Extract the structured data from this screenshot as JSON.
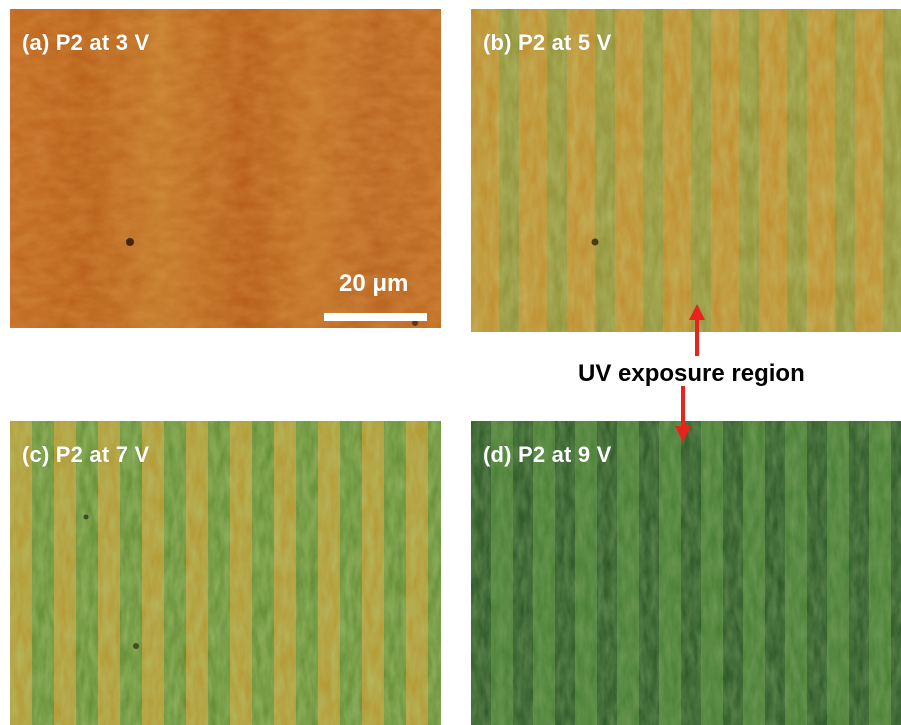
{
  "panels": {
    "a": {
      "label": "(a) P2 at 3 V"
    },
    "b": {
      "label": "(b) P2 at 5 V"
    },
    "c": {
      "label": "(c) P2 at 7 V"
    },
    "d": {
      "label": "(d) P2 at 9 V"
    }
  },
  "scale_bar": {
    "label": "20 μm"
  },
  "annotation": {
    "label": "UV exposure region"
  },
  "colors": {
    "orange": "#c0651c",
    "amber": "#c38a2a",
    "olive": "#8d9a3a",
    "green": "#3d7a2e",
    "dark_green": "#1f4b22",
    "arrow_red": "#e8231c"
  },
  "icons": {
    "arrow": "red-double-arrow-icon"
  }
}
